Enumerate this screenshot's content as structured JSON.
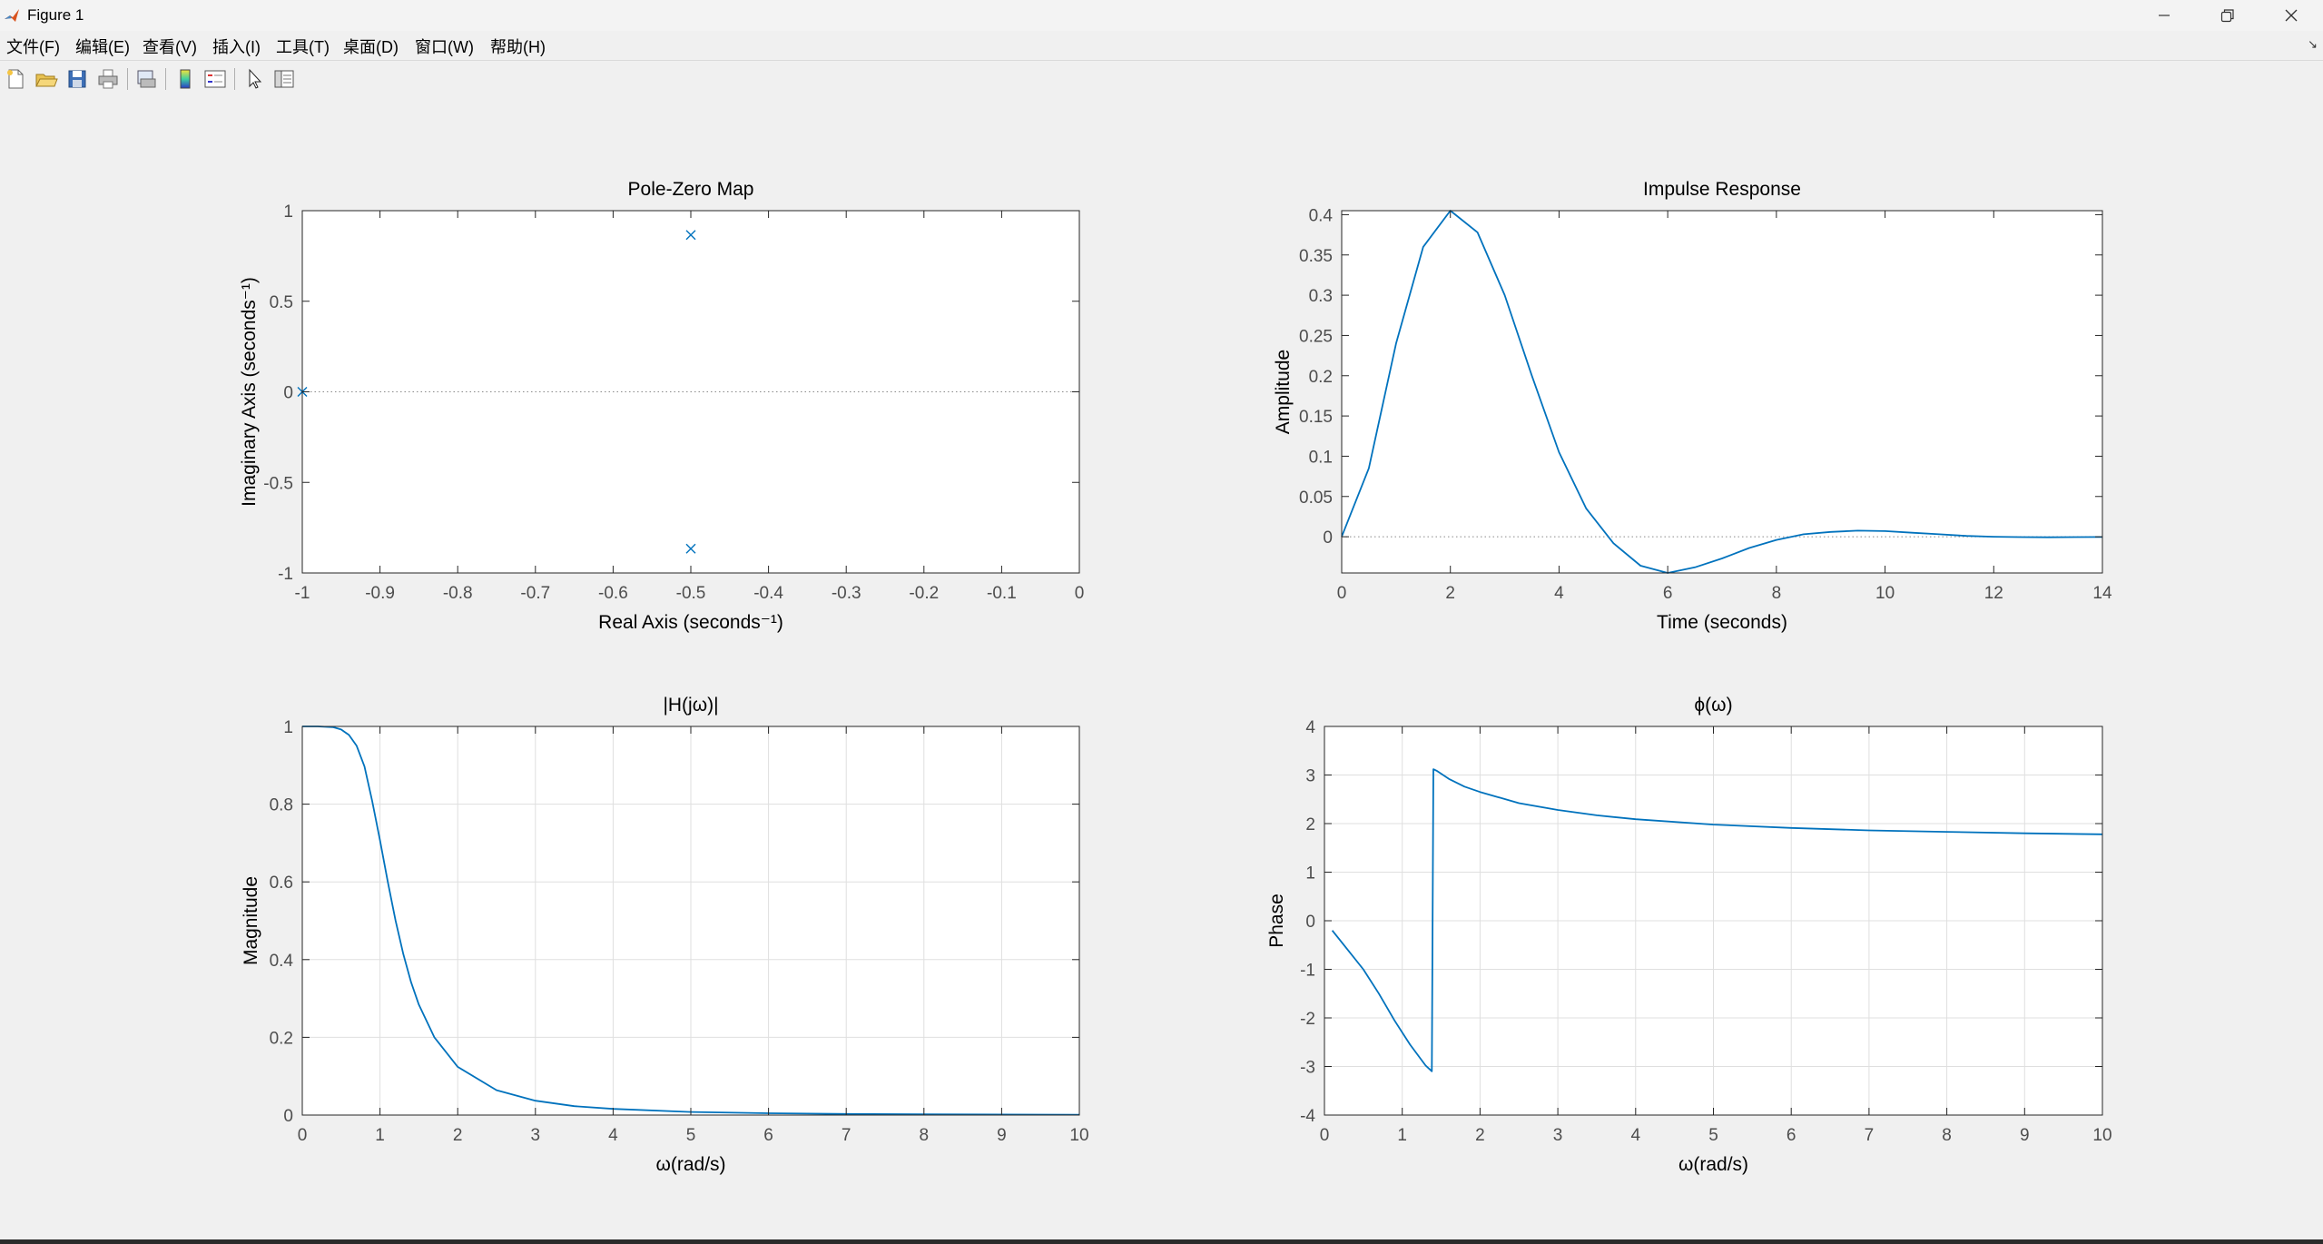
{
  "window": {
    "title": "Figure 1"
  },
  "menu": [
    "文件(F)",
    "编辑(E)",
    "查看(V)",
    "插入(I)",
    "工具(T)",
    "桌面(D)",
    "窗口(W)",
    "帮助(H)"
  ],
  "toolbar_icons": [
    "new-figure-icon",
    "open-file-icon",
    "save-icon",
    "print-icon",
    "print-preview-icon",
    "colorbar-icon",
    "legend-icon",
    "edit-plot-pointer-icon",
    "property-inspector-icon"
  ],
  "colors": {
    "line": "#0072bd",
    "axes": "#262626",
    "ticklabel": "#4d4d4d",
    "grid": "#dfdfdf"
  },
  "chart_data": [
    {
      "type": "scatter",
      "title": "Pole-Zero Map",
      "xlabel": "Real Axis (seconds⁻¹)",
      "ylabel": "Imaginary Axis (seconds⁻¹)",
      "xlim": [
        -1,
        0
      ],
      "ylim": [
        -1,
        1
      ],
      "xticks": [
        "-1",
        "-0.9",
        "-0.8",
        "-0.7",
        "-0.6",
        "-0.5",
        "-0.4",
        "-0.3",
        "-0.2",
        "-0.1",
        "0"
      ],
      "yticks": [
        "-1",
        "-0.5",
        "0",
        "0.5",
        "1"
      ],
      "grid": false,
      "marker": "x",
      "points": [
        {
          "x": -0.5,
          "y": 0.866
        },
        {
          "x": -0.5,
          "y": -0.866
        },
        {
          "x": -1,
          "y": 0
        }
      ],
      "zero_line": true
    },
    {
      "type": "line",
      "title": "Impulse Response",
      "xlabel": "Time (seconds)",
      "ylabel": "Amplitude",
      "xlim": [
        0,
        14
      ],
      "ylim": [
        -0.045,
        0.405
      ],
      "xticks": [
        "0",
        "2",
        "4",
        "6",
        "8",
        "10",
        "12",
        "14"
      ],
      "yticks": [
        "0",
        "0.05",
        "0.1",
        "0.15",
        "0.2",
        "0.25",
        "0.3",
        "0.35",
        "0.4"
      ],
      "grid": false,
      "zero_line": true,
      "series": [
        {
          "x": [
            0,
            0.5,
            1,
            1.5,
            2,
            2.5,
            3,
            3.5,
            4,
            4.5,
            5,
            5.5,
            6,
            6.5,
            7,
            7.5,
            8,
            8.5,
            9,
            9.5,
            10,
            10.5,
            11,
            11.5,
            12,
            12.5,
            13,
            13.5,
            14
          ],
          "values": [
            0,
            0.085,
            0.24,
            0.36,
            0.405,
            0.378,
            0.3,
            0.2,
            0.105,
            0.035,
            -0.008,
            -0.036,
            -0.045,
            -0.038,
            -0.027,
            -0.014,
            -0.004,
            0.003,
            0.006,
            0.0075,
            0.007,
            0.005,
            0.003,
            0.001,
            0,
            -0.0005,
            -0.0007,
            -0.0005,
            -0.0003
          ]
        }
      ]
    },
    {
      "type": "line",
      "title": "|H(jω)|",
      "xlabel": "ω(rad/s)",
      "ylabel": "Magnitude",
      "xlim": [
        0,
        10
      ],
      "ylim": [
        0,
        1
      ],
      "xticks": [
        "0",
        "1",
        "2",
        "3",
        "4",
        "5",
        "6",
        "7",
        "8",
        "9",
        "10"
      ],
      "yticks": [
        "0",
        "0.2",
        "0.4",
        "0.6",
        "0.8",
        "1"
      ],
      "grid": true,
      "series": [
        {
          "x": [
            0,
            0.2,
            0.4,
            0.5,
            0.6,
            0.7,
            0.8,
            0.9,
            1,
            1.1,
            1.2,
            1.3,
            1.4,
            1.5,
            1.7,
            2,
            2.5,
            3,
            3.5,
            4,
            5,
            6,
            7,
            8,
            9,
            10
          ],
          "values": [
            1,
            1,
            0.998,
            0.992,
            0.978,
            0.95,
            0.897,
            0.808,
            0.707,
            0.6,
            0.501,
            0.414,
            0.342,
            0.284,
            0.2,
            0.124,
            0.064,
            0.037,
            0.023,
            0.016,
            0.008,
            0.0046,
            0.0029,
            0.002,
            0.0014,
            0.001
          ]
        }
      ]
    },
    {
      "type": "line",
      "title": "ϕ(ω)",
      "xlabel": "ω(rad/s)",
      "ylabel": "Phase",
      "xlim": [
        0,
        10
      ],
      "ylim": [
        -4,
        4
      ],
      "xticks": [
        "0",
        "1",
        "2",
        "3",
        "4",
        "5",
        "6",
        "7",
        "8",
        "9",
        "10"
      ],
      "yticks": [
        "-4",
        "-3",
        "-2",
        "-1",
        "0",
        "1",
        "2",
        "3",
        "4"
      ],
      "grid": true,
      "series": [
        {
          "x": [
            0.1,
            0.3,
            0.5,
            0.7,
            0.9,
            1.1,
            1.3,
            1.38,
            1.4,
            1.45,
            1.6,
            1.8,
            2,
            2.5,
            3,
            3.5,
            4,
            5,
            6,
            7,
            8,
            9,
            10
          ],
          "values": [
            -0.2,
            -0.6,
            -1.0,
            -1.5,
            -2.05,
            -2.55,
            -2.98,
            -3.1,
            3.12,
            3.08,
            2.92,
            2.76,
            2.65,
            2.42,
            2.28,
            2.17,
            2.09,
            1.98,
            1.91,
            1.86,
            1.83,
            1.8,
            1.78
          ]
        }
      ]
    }
  ]
}
